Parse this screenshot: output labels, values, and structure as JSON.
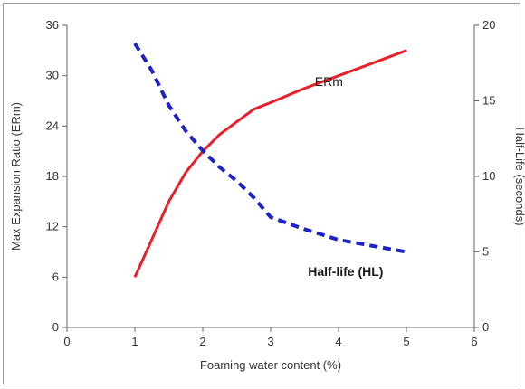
{
  "chart_data": {
    "type": "line",
    "title": "",
    "xlabel": "Foaming water content (%)",
    "ylabel_left": "Max Expansion Ratio (ERm)",
    "ylabel_right": "Half-Life (seconds)",
    "xlim": [
      0,
      6
    ],
    "ylim_left": [
      0,
      36
    ],
    "ylim_right": [
      0,
      20
    ],
    "x_ticks": [
      "0",
      "1",
      "2",
      "3",
      "4",
      "5",
      "6"
    ],
    "y_left_ticks": [
      "0",
      "6",
      "12",
      "18",
      "24",
      "30",
      "36"
    ],
    "y_right_ticks": [
      "0",
      "5",
      "10",
      "15",
      "20"
    ],
    "grid": false,
    "series": [
      {
        "name": "ERm",
        "axis": "left",
        "color": "#e8202a",
        "style": "solid",
        "x": [
          1.0,
          1.25,
          1.5,
          1.75,
          2.0,
          2.25,
          2.5,
          2.75,
          3.0,
          3.5,
          4.0,
          4.5,
          5.0
        ],
        "y": [
          6.0,
          10.5,
          15.0,
          18.5,
          21.0,
          23.0,
          24.5,
          26.0,
          26.8,
          28.5,
          30.0,
          31.5,
          33.0
        ]
      },
      {
        "name": "Half-life (HL)",
        "axis": "right",
        "color": "#1c22c8",
        "style": "dashed",
        "x": [
          1.0,
          1.25,
          1.5,
          1.75,
          2.0,
          2.25,
          2.5,
          2.75,
          3.0,
          3.5,
          4.0,
          4.5,
          5.0
        ],
        "y": [
          18.8,
          17.0,
          14.7,
          13.0,
          11.7,
          10.6,
          9.7,
          8.6,
          7.3,
          6.5,
          5.8,
          5.4,
          5.0
        ]
      }
    ],
    "annotations": [
      {
        "text": "ERm",
        "series": 0
      },
      {
        "text": "Half-life (HL)",
        "series": 1
      }
    ]
  }
}
